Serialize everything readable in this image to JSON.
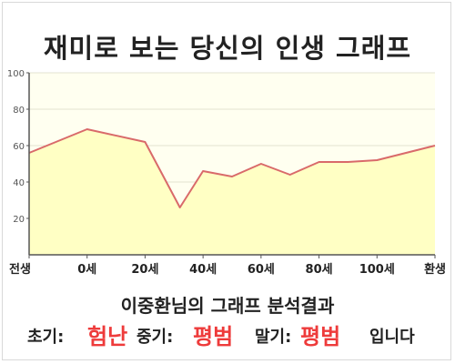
{
  "header": {
    "title": "재미로 보는 당신의 인생 그래프"
  },
  "chart_data": {
    "type": "area",
    "title": "재미로 보는 당신의 인생 그래프",
    "xlabel": "",
    "ylabel": "",
    "ylim": [
      0,
      100
    ],
    "y_ticks": [
      20,
      40,
      60,
      80,
      100
    ],
    "x_tick_labels": [
      "전생",
      "0세",
      "20세",
      "40세",
      "60세",
      "80세",
      "100세",
      "환생"
    ],
    "x_tick_positions": [
      -20,
      0,
      20,
      40,
      60,
      80,
      100,
      120
    ],
    "x": [
      -20,
      0,
      20,
      32,
      40,
      50,
      60,
      70,
      80,
      90,
      100,
      120
    ],
    "values": [
      56,
      69,
      62,
      26,
      46,
      43,
      50,
      44,
      51,
      51,
      52,
      60
    ],
    "grid": true,
    "colors": {
      "line": "#d96a6a",
      "fill": "#ffffc4",
      "plot_bg": "#fffff0"
    }
  },
  "result": {
    "title": "이중환님의 그래프 분석결과",
    "early_label": "초기:",
    "early_value": "험난",
    "mid_label": "중기:",
    "mid_value": "평범",
    "late_label": "말기:",
    "late_value": "평범",
    "ending": "입니다",
    "accent_color": "#ee3b3b"
  }
}
